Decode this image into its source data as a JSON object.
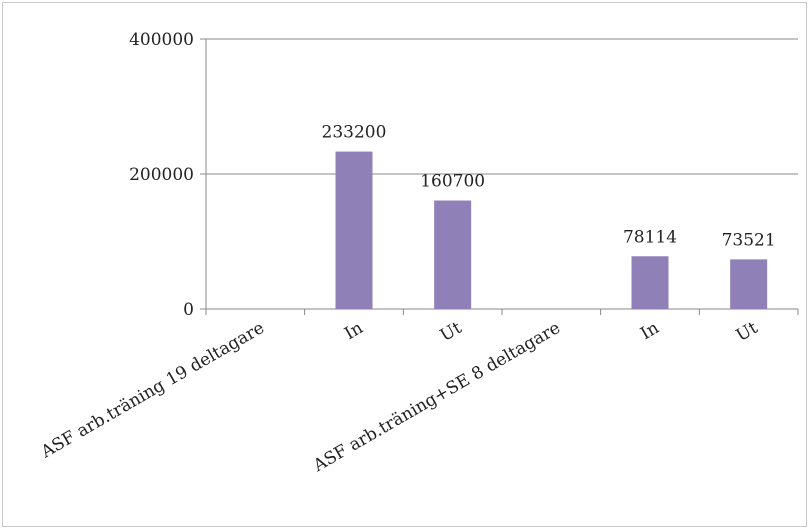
{
  "chart_data": {
    "type": "bar",
    "categories": [
      "ASF arb.träning 19 deltagare",
      "In",
      "Ut",
      "ASF arb.träning+SE 8 deltagare",
      "In",
      "Ut"
    ],
    "values": [
      null,
      233200,
      160700,
      null,
      78114,
      73521
    ],
    "data_labels": [
      "",
      "233200",
      "160700",
      "",
      "78114",
      "73521"
    ],
    "yticks": [
      "0",
      "200000",
      "400000"
    ],
    "ylim": [
      0,
      400000
    ],
    "grid": true,
    "bar_color": "#9080b8",
    "axis_color": "#888888"
  }
}
